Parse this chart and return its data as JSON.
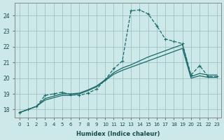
{
  "xlabel": "Humidex (Indice chaleur)",
  "bg_color": "#cce8e8",
  "grid_color": "#9bbaba",
  "line_color": "#1a6b6b",
  "x": [
    0,
    1,
    2,
    3,
    4,
    5,
    6,
    7,
    8,
    9,
    10,
    11,
    12,
    13,
    14,
    15,
    16,
    17,
    18,
    19,
    20,
    21,
    22,
    23
  ],
  "curve_main": [
    17.8,
    18.0,
    18.2,
    18.9,
    19.0,
    19.1,
    18.95,
    18.9,
    19.05,
    19.3,
    19.9,
    20.6,
    21.1,
    24.3,
    24.35,
    24.1,
    23.35,
    22.5,
    22.35,
    22.2,
    20.2,
    20.8,
    20.1,
    20.1
  ],
  "curve_low": [
    17.8,
    18.0,
    18.2,
    18.6,
    18.75,
    18.9,
    18.9,
    19.0,
    19.2,
    19.45,
    19.85,
    20.25,
    20.5,
    20.7,
    20.9,
    21.1,
    21.3,
    21.5,
    21.7,
    21.9,
    20.0,
    20.15,
    20.05,
    20.05
  ],
  "curve_mid": [
    17.8,
    18.0,
    18.2,
    18.7,
    18.85,
    19.0,
    19.0,
    19.05,
    19.25,
    19.5,
    19.9,
    20.35,
    20.65,
    20.85,
    21.1,
    21.35,
    21.55,
    21.75,
    21.95,
    22.15,
    20.1,
    20.3,
    20.2,
    20.2
  ],
  "ylim": [
    17.5,
    24.8
  ],
  "yticks": [
    18,
    19,
    20,
    21,
    22,
    23,
    24
  ],
  "xticks": [
    0,
    1,
    2,
    3,
    4,
    5,
    6,
    7,
    8,
    9,
    10,
    11,
    12,
    13,
    14,
    15,
    16,
    17,
    18,
    19,
    20,
    21,
    22,
    23
  ]
}
